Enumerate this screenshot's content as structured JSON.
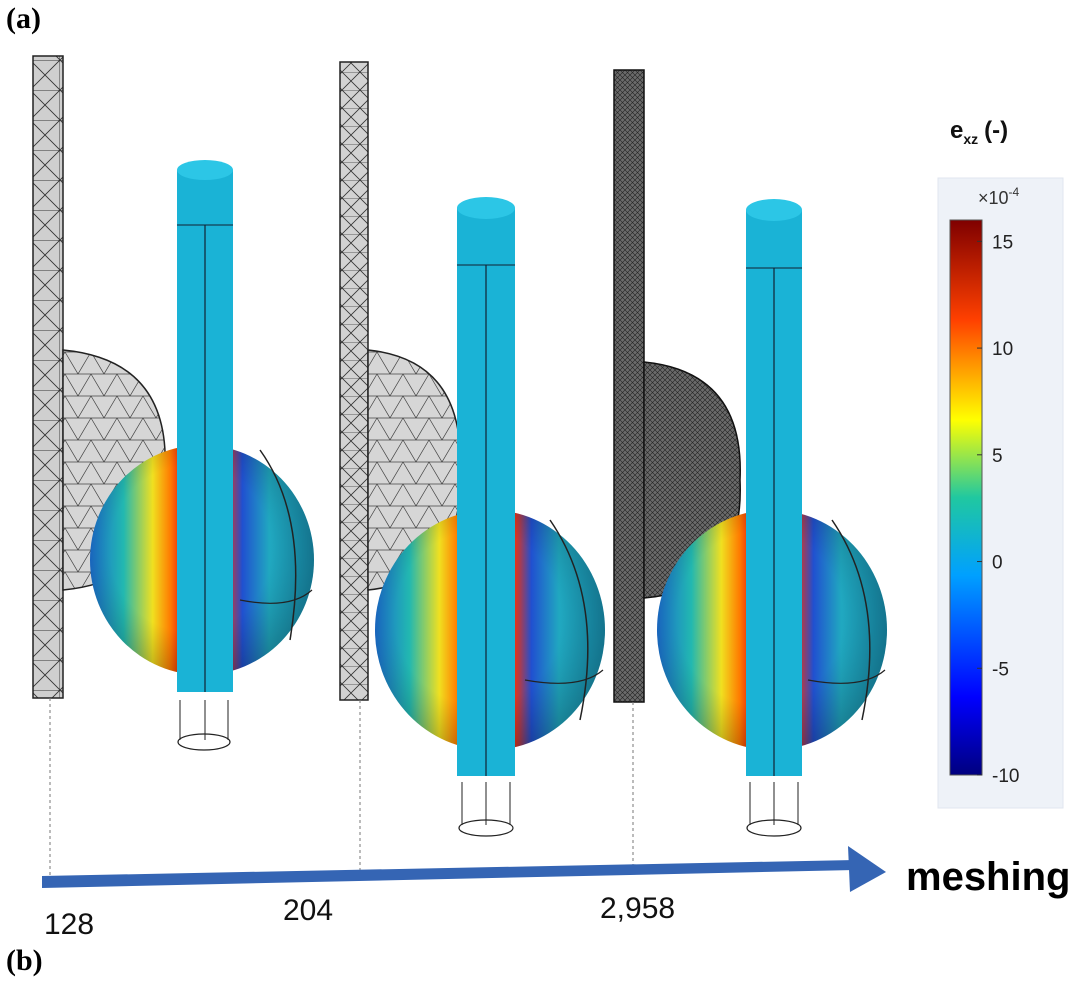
{
  "panel_labels": {
    "a": "(a)",
    "b": "(b)"
  },
  "meshing_axis": {
    "title": "meshing",
    "ticks": [
      "128",
      "204",
      "2,958"
    ]
  },
  "colorbar": {
    "title_main": "e",
    "title_sub": "xz",
    "title_unit": "(-)",
    "exponent_base": "×10",
    "exponent_power": "-4",
    "ticks": [
      "15",
      "10",
      "5",
      "0",
      "-5",
      "-10"
    ],
    "range": [
      -10,
      16
    ]
  },
  "colors": {
    "rod": "#1ab3d6",
    "mesh_fill": "#cfcfcf",
    "fine_mesh": "#555555",
    "arrow": "#3565b4"
  }
}
